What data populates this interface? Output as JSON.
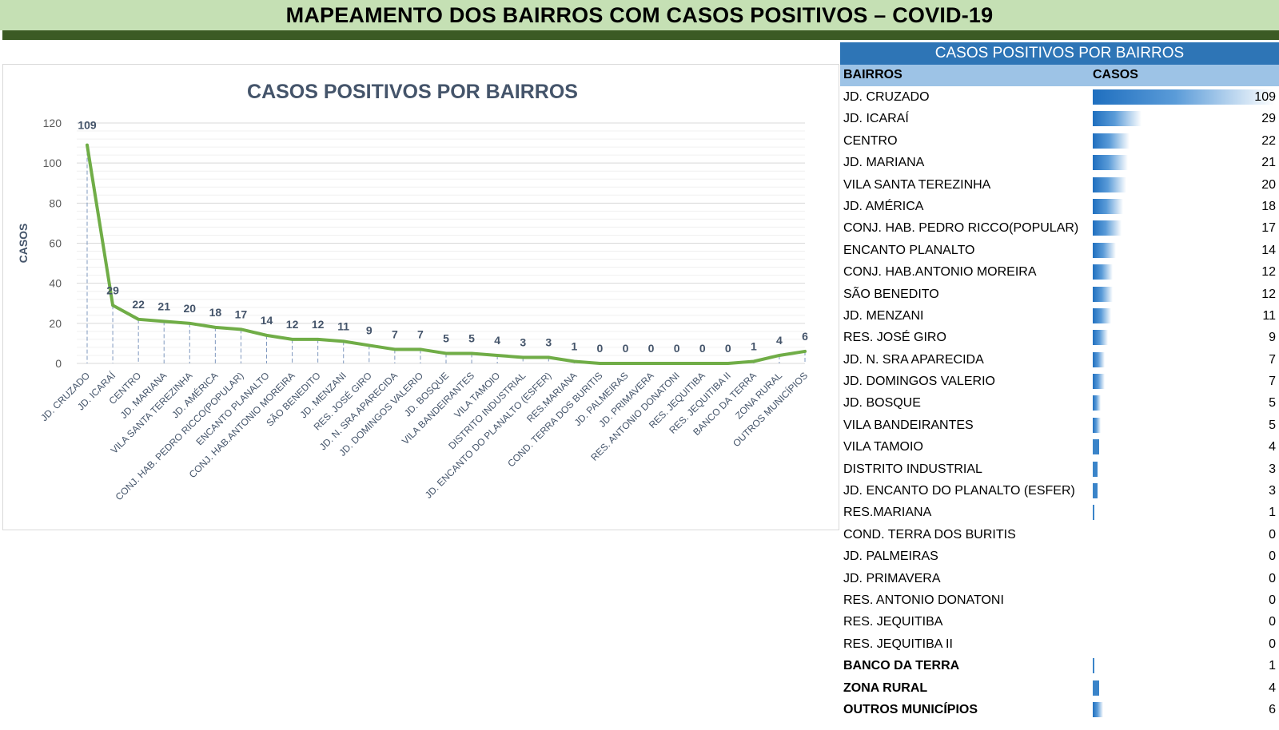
{
  "header": {
    "title": "MAPEAMENTO DOS BAIRROS COM CASOS POSITIVOS – COVID-19"
  },
  "colors": {
    "header_bg": "#c5e0b4",
    "header_band": "#3b5a24",
    "line": "#70ad47",
    "table_title_bg": "#2e75b6",
    "table_head_bg": "#9dc3e6",
    "bar": "#1f6fbf"
  },
  "table": {
    "title": "CASOS POSITIVOS POR BAIRROS",
    "col_bairros": "BAIRROS",
    "col_casos": "CASOS",
    "max": 109,
    "rows": [
      {
        "name": "JD. CRUZADO",
        "value": 109,
        "bold": false
      },
      {
        "name": "JD. ICARAÍ",
        "value": 29,
        "bold": false
      },
      {
        "name": "CENTRO",
        "value": 22,
        "bold": false
      },
      {
        "name": "JD. MARIANA",
        "value": 21,
        "bold": false
      },
      {
        "name": "VILA SANTA TEREZINHA",
        "value": 20,
        "bold": false
      },
      {
        "name": "JD. AMÉRICA",
        "value": 18,
        "bold": false
      },
      {
        "name": "CONJ. HAB. PEDRO RICCO(POPULAR)",
        "value": 17,
        "bold": false
      },
      {
        "name": "ENCANTO PLANALTO",
        "value": 14,
        "bold": false
      },
      {
        "name": "CONJ. HAB.ANTONIO MOREIRA",
        "value": 12,
        "bold": false
      },
      {
        "name": "SÃO BENEDITO",
        "value": 12,
        "bold": false
      },
      {
        "name": "JD. MENZANI",
        "value": 11,
        "bold": false
      },
      {
        "name": "RES. JOSÉ GIRO",
        "value": 9,
        "bold": false
      },
      {
        "name": "JD. N. SRA APARECIDA",
        "value": 7,
        "bold": false
      },
      {
        "name": "JD. DOMINGOS VALERIO",
        "value": 7,
        "bold": false
      },
      {
        "name": "JD. BOSQUE",
        "value": 5,
        "bold": false
      },
      {
        "name": "VILA BANDEIRANTES",
        "value": 5,
        "bold": false
      },
      {
        "name": "VILA TAMOIO",
        "value": 4,
        "bold": false
      },
      {
        "name": "DISTRITO INDUSTRIAL",
        "value": 3,
        "bold": false
      },
      {
        "name": "JD. ENCANTO DO PLANALTO (ESFER)",
        "value": 3,
        "bold": false
      },
      {
        "name": "RES.MARIANA",
        "value": 1,
        "bold": false
      },
      {
        "name": "COND. TERRA DOS BURITIS",
        "value": 0,
        "bold": false
      },
      {
        "name": "JD. PALMEIRAS",
        "value": 0,
        "bold": false
      },
      {
        "name": "JD. PRIMAVERA",
        "value": 0,
        "bold": false
      },
      {
        "name": "RES. ANTONIO DONATONI",
        "value": 0,
        "bold": false
      },
      {
        "name": "RES. JEQUITIBA",
        "value": 0,
        "bold": false
      },
      {
        "name": "RES. JEQUITIBA II",
        "value": 0,
        "bold": false
      },
      {
        "name": "BANCO DA TERRA",
        "value": 1,
        "bold": true
      },
      {
        "name": "ZONA RURAL",
        "value": 4,
        "bold": true
      },
      {
        "name": "OUTROS MUNICÍPIOS",
        "value": 6,
        "bold": true
      }
    ]
  },
  "chart_data": {
    "type": "line",
    "title": "CASOS POSITIVOS POR BAIRROS",
    "xlabel": "",
    "ylabel": "CASOS",
    "ylim": [
      0,
      120
    ],
    "yticks": [
      0,
      20,
      40,
      60,
      80,
      100,
      120
    ],
    "grid": true,
    "legend": "none",
    "categories": [
      "JD. CRUZADO",
      "JD. ICARAÍ",
      "CENTRO",
      "JD. MARIANA",
      "VILA SANTA TEREZINHA",
      "JD. AMÉRICA",
      "CONJ. HAB. PEDRO RICCO(POPULAR)",
      "ENCANTO PLANALTO",
      "CONJ. HAB.ANTONIO MOREIRA",
      "SÃO BENEDITO",
      "JD. MENZANI",
      "RES. JOSÉ GIRO",
      "JD. N. SRA APARECIDA",
      "JD. DOMINGOS VALERIO",
      "JD. BOSQUE",
      "VILA BANDEIRANTES",
      "VILA TAMOIO",
      "DISTRITO INDUSTRIAL",
      "JD. ENCANTO DO PLANALTO (ESFER)",
      "RES.MARIANA",
      "COND. TERRA DOS BURITIS",
      "JD. PALMEIRAS",
      "JD. PRIMAVERA",
      "RES. ANTONIO DONATONI",
      "RES. JEQUITIBA",
      "RES. JEQUITIBA II",
      "BANCO DA TERRA",
      "ZONA RURAL",
      "OUTROS MUNICÍPIOS"
    ],
    "values": [
      109,
      29,
      22,
      21,
      20,
      18,
      17,
      14,
      12,
      12,
      11,
      9,
      7,
      7,
      5,
      5,
      4,
      3,
      3,
      1,
      0,
      0,
      0,
      0,
      0,
      0,
      1,
      4,
      6
    ]
  }
}
